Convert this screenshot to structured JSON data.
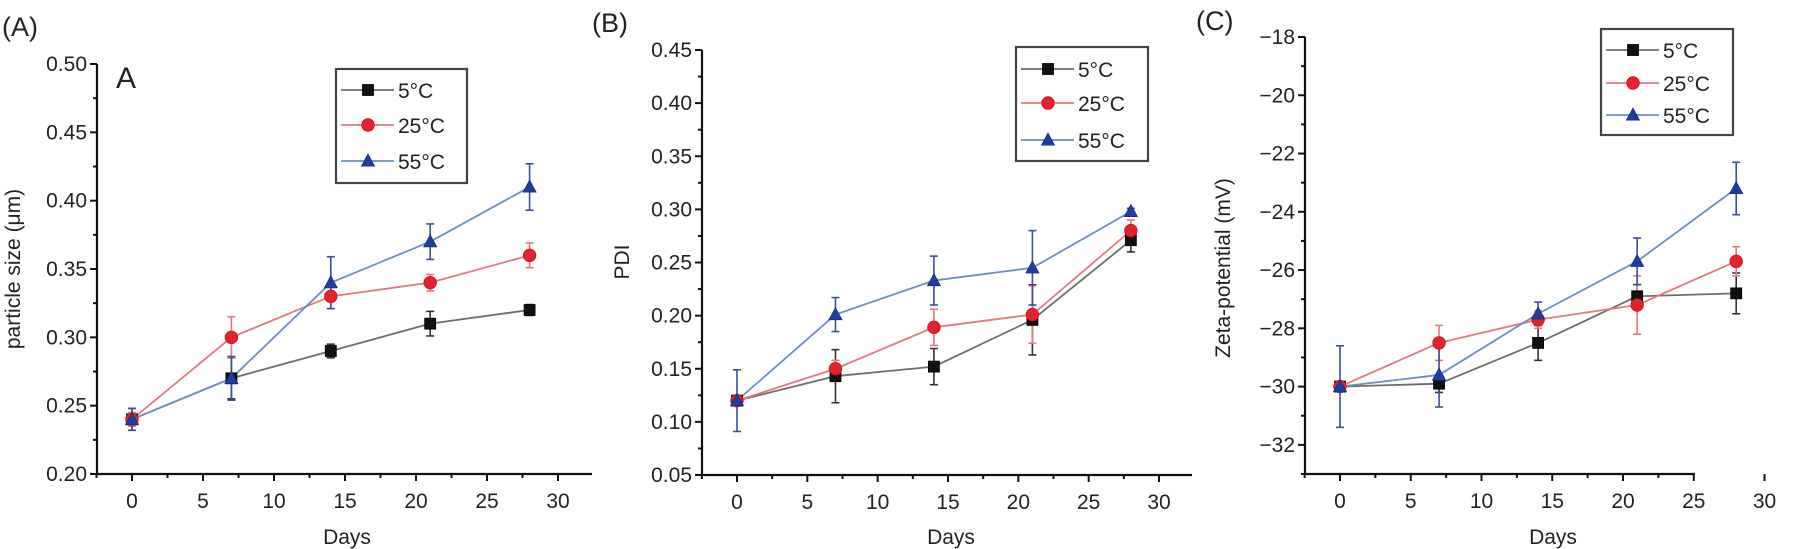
{
  "colors": {
    "5C": {
      "line": "#6e6e6e",
      "marker": "#111111",
      "err": "#333333"
    },
    "25C": {
      "line": "#e07a80",
      "marker": "#e3222b",
      "err": "#e07a80"
    },
    "55C": {
      "line": "#6d8fbf",
      "marker": "#1f3fa0",
      "err": "#3b4f9a"
    }
  },
  "chart_data": [
    {
      "type": "line",
      "panel_label": "(A)",
      "inner_label": "A",
      "title": "",
      "xlabel": "Days",
      "ylabel": "particle size (μm)",
      "xlim": [
        -2.5,
        32.5
      ],
      "ylim": [
        0.2,
        0.5
      ],
      "xticks": [
        0,
        5,
        10,
        15,
        20,
        25,
        30
      ],
      "xtick_labels": [
        "0",
        "5",
        "10",
        "15",
        "20",
        "25",
        "30"
      ],
      "yticks": [
        0.2,
        0.25,
        0.3,
        0.35,
        0.4,
        0.45,
        0.5
      ],
      "ytick_labels": [
        "0.20",
        "0.25",
        "0.30",
        "0.35",
        "0.40",
        "0.45",
        "0.50"
      ],
      "legend_position": "top-right",
      "x": [
        0,
        7,
        14,
        21,
        28
      ],
      "series": [
        {
          "name": "5°C",
          "key": "5C",
          "marker": "square",
          "values": [
            0.24,
            0.27,
            0.29,
            0.31,
            0.32
          ],
          "errors": [
            0.008,
            0.015,
            0.005,
            0.009,
            0.004
          ]
        },
        {
          "name": "25°C",
          "key": "25C",
          "marker": "circle",
          "values": [
            0.24,
            0.3,
            0.33,
            0.34,
            0.36
          ],
          "errors": [
            0.005,
            0.015,
            0.009,
            0.006,
            0.009
          ]
        },
        {
          "name": "55°C",
          "key": "55C",
          "marker": "triangle",
          "values": [
            0.24,
            0.27,
            0.34,
            0.37,
            0.41
          ],
          "errors": [
            0.008,
            0.016,
            0.019,
            0.013,
            0.017
          ]
        }
      ]
    },
    {
      "type": "line",
      "panel_label": "(B)",
      "inner_label": "",
      "title": "",
      "xlabel": "Days",
      "ylabel": "PDI",
      "xlim": [
        -2.5,
        32.5
      ],
      "ylim": [
        0.05,
        0.45
      ],
      "xticks": [
        0,
        5,
        10,
        15,
        20,
        25,
        30
      ],
      "xtick_labels": [
        "0",
        "5",
        "10",
        "15",
        "20",
        "25",
        "30"
      ],
      "yticks": [
        0.05,
        0.1,
        0.15,
        0.2,
        0.25,
        0.3,
        0.35,
        0.4,
        0.45
      ],
      "ytick_labels": [
        "0.05",
        "0.10",
        "0.15",
        "0.20",
        "0.25",
        "0.30",
        "0.35",
        "0.40",
        "0.45"
      ],
      "legend_position": "top-right",
      "x": [
        0,
        7,
        14,
        21,
        28
      ],
      "series": [
        {
          "name": "5°C",
          "key": "5C",
          "marker": "square",
          "values": [
            0.12,
            0.143,
            0.152,
            0.196,
            0.271
          ],
          "errors": [
            0.003,
            0.025,
            0.017,
            0.033,
            0.011
          ]
        },
        {
          "name": "25°C",
          "key": "25C",
          "marker": "circle",
          "values": [
            0.12,
            0.15,
            0.189,
            0.201,
            0.28
          ],
          "errors": [
            0.003,
            0.008,
            0.017,
            0.027,
            0.01
          ]
        },
        {
          "name": "55°C",
          "key": "55C",
          "marker": "triangle",
          "values": [
            0.12,
            0.201,
            0.233,
            0.245,
            0.298
          ],
          "errors": [
            0.029,
            0.016,
            0.023,
            0.035,
            0.003
          ]
        }
      ]
    },
    {
      "type": "line",
      "panel_label": "(C)",
      "inner_label": "",
      "title": "",
      "xlabel": "Days",
      "ylabel": "Zeta-potential (mV)",
      "xlim": [
        -2.5,
        32.5
      ],
      "ylim": [
        -33,
        -18
      ],
      "xticks": [
        0,
        5,
        10,
        15,
        20,
        25,
        30
      ],
      "xtick_labels": [
        "0",
        "5",
        "10",
        "15",
        "20",
        "25",
        "30"
      ],
      "yticks": [
        -32,
        -30,
        -28,
        -26,
        -24,
        -22,
        -20,
        -18
      ],
      "ytick_labels": [
        "−32",
        "−30",
        "−28",
        "−26",
        "−24",
        "−22",
        "−20",
        "−18"
      ],
      "legend_position": "top-right",
      "x": [
        0,
        7,
        14,
        21,
        28
      ],
      "series": [
        {
          "name": "5°C",
          "key": "5C",
          "marker": "square",
          "values": [
            -30.0,
            -29.9,
            -28.5,
            -26.9,
            -26.8
          ],
          "errors": [
            0.1,
            0.3,
            0.6,
            0.4,
            0.7
          ]
        },
        {
          "name": "25°C",
          "key": "25C",
          "marker": "circle",
          "values": [
            -30.0,
            -28.5,
            -27.7,
            -27.2,
            -25.7
          ],
          "errors": [
            0.1,
            0.6,
            0.3,
            1.0,
            0.5
          ]
        },
        {
          "name": "55°C",
          "key": "55C",
          "marker": "triangle",
          "values": [
            -30.0,
            -29.6,
            -27.5,
            -25.7,
            -23.2
          ],
          "errors": [
            1.4,
            1.1,
            0.4,
            0.8,
            0.9
          ]
        }
      ]
    }
  ]
}
